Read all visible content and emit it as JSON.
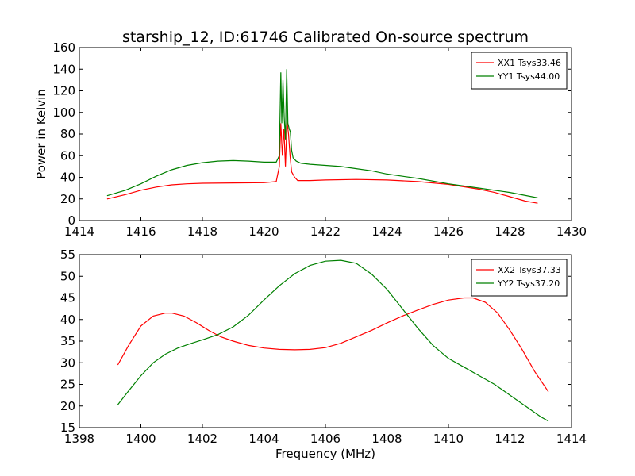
{
  "figure": {
    "title": "starship_12, ID:61746 Calibrated On-source spectrum"
  },
  "chart_data": [
    {
      "type": "line",
      "ylabel": "Power in Kelvin",
      "xlabel": "",
      "xlim": [
        1414,
        1430
      ],
      "ylim": [
        0,
        160
      ],
      "xticks": [
        "1414",
        "1416",
        "1418",
        "1420",
        "1422",
        "1424",
        "1426",
        "1428",
        "1430"
      ],
      "yticks": [
        "0",
        "20",
        "40",
        "60",
        "80",
        "100",
        "120",
        "140",
        "160"
      ],
      "grid": false,
      "legend": "top-right",
      "series": [
        {
          "name": "XX1 Tsys33.46",
          "color": "#ff0000",
          "x": [
            1414.9,
            1415.5,
            1416.0,
            1416.5,
            1417.0,
            1417.5,
            1418.0,
            1419.0,
            1420.0,
            1420.4,
            1420.5,
            1420.55,
            1420.6,
            1420.65,
            1420.7,
            1420.75,
            1420.8,
            1420.85,
            1420.9,
            1421.0,
            1421.1,
            1421.5,
            1422.0,
            1423.0,
            1424.0,
            1425.0,
            1426.0,
            1427.0,
            1427.5,
            1428.0,
            1428.5,
            1428.9
          ],
          "y": [
            20,
            24,
            28,
            31,
            33,
            34,
            34.5,
            34.8,
            35,
            36,
            50,
            90,
            60,
            85,
            50,
            92,
            80,
            60,
            45,
            40,
            37,
            37,
            37.5,
            38,
            37.5,
            36,
            33.5,
            29,
            26,
            22,
            18,
            16
          ]
        },
        {
          "name": "YY1 Tsys44.00",
          "color": "#008000",
          "x": [
            1414.9,
            1415.5,
            1416.0,
            1416.5,
            1417.0,
            1417.5,
            1418.0,
            1418.5,
            1419.0,
            1419.5,
            1420.0,
            1420.4,
            1420.5,
            1420.55,
            1420.58,
            1420.62,
            1420.66,
            1420.7,
            1420.74,
            1420.78,
            1420.82,
            1420.86,
            1420.9,
            1420.95,
            1421.05,
            1421.2,
            1421.5,
            1422.0,
            1422.5,
            1423.0,
            1423.5,
            1424.0,
            1425.0,
            1426.0,
            1427.0,
            1428.0,
            1428.9
          ],
          "y": [
            23,
            28,
            34,
            41,
            47,
            51,
            53.5,
            55,
            55.5,
            55,
            54,
            54,
            60,
            137,
            90,
            130,
            95,
            75,
            140,
            90,
            85,
            82,
            65,
            58,
            55,
            53,
            52,
            51,
            50,
            48,
            46,
            43,
            39,
            34,
            30,
            26,
            21
          ]
        }
      ]
    },
    {
      "type": "line",
      "ylabel": "",
      "xlabel": "Frequency (MHz)",
      "xlim": [
        1398,
        1414
      ],
      "ylim": [
        15,
        55
      ],
      "xticks": [
        "1398",
        "1400",
        "1402",
        "1404",
        "1406",
        "1408",
        "1410",
        "1412",
        "1414"
      ],
      "yticks": [
        "15",
        "20",
        "25",
        "30",
        "35",
        "40",
        "45",
        "50",
        "55"
      ],
      "grid": false,
      "legend": "top-right",
      "series": [
        {
          "name": "XX2 Tsys37.33",
          "color": "#ff0000",
          "x": [
            1399.25,
            1399.6,
            1400.0,
            1400.4,
            1400.8,
            1401.0,
            1401.4,
            1401.8,
            1402.2,
            1402.6,
            1403.0,
            1403.5,
            1404.0,
            1404.5,
            1405.0,
            1405.5,
            1406.0,
            1406.5,
            1407.0,
            1407.5,
            1408.0,
            1408.5,
            1409.0,
            1409.5,
            1410.0,
            1410.5,
            1410.8,
            1411.2,
            1411.6,
            1412.0,
            1412.4,
            1412.8,
            1413.25
          ],
          "y": [
            29.5,
            34,
            38.5,
            40.8,
            41.5,
            41.5,
            40.8,
            39.3,
            37.5,
            36,
            35,
            34,
            33.4,
            33.1,
            33,
            33.1,
            33.5,
            34.5,
            36,
            37.5,
            39.2,
            40.8,
            42.2,
            43.5,
            44.5,
            45,
            45,
            44,
            41.5,
            37.5,
            33,
            28,
            23.3
          ]
        },
        {
          "name": "YY2 Tsys37.20",
          "color": "#008000",
          "x": [
            1399.25,
            1399.6,
            1400.0,
            1400.4,
            1400.8,
            1401.2,
            1401.6,
            1402.0,
            1402.5,
            1403.0,
            1403.5,
            1404.0,
            1404.5,
            1405.0,
            1405.5,
            1406.0,
            1406.5,
            1407.0,
            1407.5,
            1408.0,
            1408.5,
            1409.0,
            1409.5,
            1410.0,
            1410.5,
            1411.0,
            1411.5,
            1412.0,
            1412.5,
            1413.0,
            1413.25
          ],
          "y": [
            20.3,
            23.5,
            27,
            30,
            32,
            33.4,
            34.4,
            35.3,
            36.5,
            38.3,
            41,
            44.5,
            47.8,
            50.6,
            52.5,
            53.5,
            53.7,
            53,
            50.5,
            47,
            42.5,
            38,
            34,
            31,
            29,
            27,
            25,
            22.5,
            20,
            17.5,
            16.5
          ]
        }
      ]
    }
  ]
}
